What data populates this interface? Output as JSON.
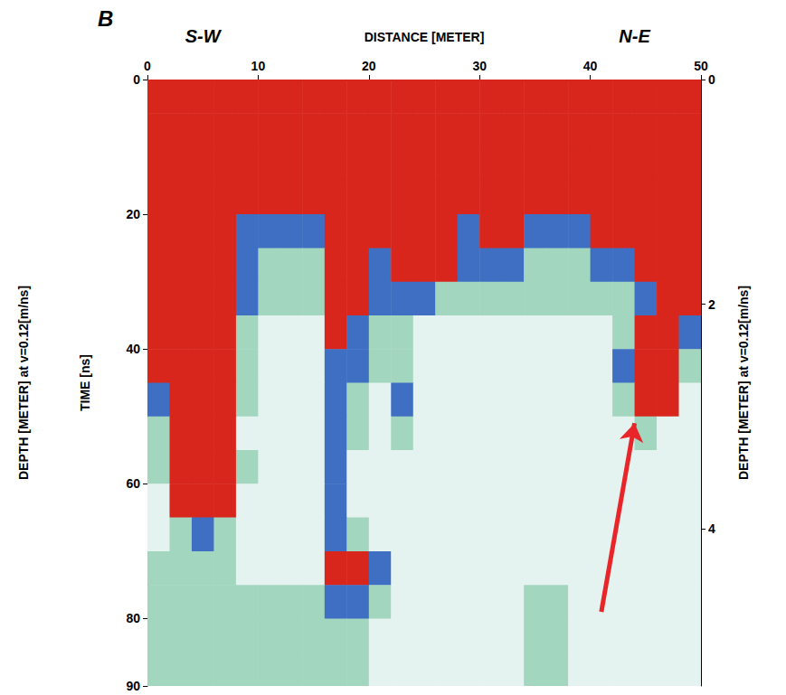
{
  "chart_data": {
    "type": "heatmap",
    "panel": "B",
    "direction_labels": [
      "S-W",
      "N-E"
    ],
    "x_label": "DISTANCE [METER]",
    "y_label": "TIME [ns]",
    "y2_label": "DEPTH [METER] at v=0.12[m/ns]",
    "xlim": [
      0,
      50
    ],
    "xticks": [
      0,
      10,
      20,
      30,
      40,
      50
    ],
    "ylim": [
      0,
      90
    ],
    "yticks": [
      0,
      20,
      40,
      60,
      80
    ],
    "y2lim": [
      0,
      5.4
    ],
    "y2ticks": [
      0,
      2,
      4
    ],
    "grid": false,
    "colors": [
      "#e4f3f0",
      "#a3d6bf",
      "#3f6fc2",
      "#d8261c"
    ],
    "cell_x": [
      1,
      3,
      5,
      7,
      9,
      11,
      13,
      15,
      17,
      19,
      21,
      23,
      25,
      27,
      29,
      31,
      33,
      35,
      37,
      39,
      41,
      43,
      45,
      47,
      49
    ],
    "cell_y": [
      2.5,
      7.5,
      12.5,
      17.5,
      22.5,
      27.5,
      32.5,
      37.5,
      42.5,
      47.5,
      52.5,
      57.5,
      62.5,
      67.5,
      72.5,
      77.5,
      82.5,
      87.5
    ],
    "cells": [
      [
        3,
        3,
        3,
        3,
        3,
        3,
        3,
        3,
        3,
        3,
        3,
        3,
        3,
        3,
        3,
        3,
        3,
        3,
        3,
        3,
        3,
        3,
        3,
        3,
        3
      ],
      [
        3,
        3,
        3,
        3,
        3,
        3,
        3,
        3,
        3,
        3,
        3,
        3,
        3,
        3,
        3,
        3,
        3,
        3,
        3,
        3,
        3,
        3,
        3,
        3,
        3
      ],
      [
        3,
        3,
        3,
        3,
        3,
        3,
        3,
        3,
        3,
        3,
        3,
        3,
        3,
        3,
        3,
        3,
        3,
        3,
        3,
        3,
        3,
        3,
        3,
        3,
        3
      ],
      [
        3,
        3,
        3,
        3,
        3,
        3,
        3,
        3,
        3,
        3,
        3,
        3,
        3,
        3,
        3,
        3,
        3,
        3,
        3,
        3,
        3,
        3,
        3,
        3,
        3
      ],
      [
        3,
        3,
        3,
        3,
        2,
        2,
        2,
        2,
        3,
        3,
        3,
        3,
        3,
        3,
        2,
        3,
        3,
        2,
        2,
        2,
        3,
        3,
        3,
        3,
        3
      ],
      [
        3,
        3,
        3,
        3,
        2,
        1,
        1,
        1,
        3,
        3,
        2,
        3,
        3,
        3,
        2,
        2,
        2,
        1,
        1,
        1,
        2,
        2,
        3,
        3,
        3
      ],
      [
        3,
        3,
        3,
        3,
        2,
        1,
        1,
        1,
        3,
        3,
        2,
        2,
        2,
        1,
        1,
        1,
        1,
        1,
        1,
        1,
        1,
        1,
        2,
        3,
        3
      ],
      [
        3,
        3,
        3,
        3,
        1,
        0,
        0,
        0,
        3,
        2,
        1,
        1,
        0,
        0,
        0,
        0,
        0,
        0,
        0,
        0,
        0,
        1,
        3,
        3,
        2
      ],
      [
        3,
        3,
        3,
        3,
        1,
        0,
        0,
        0,
        2,
        2,
        1,
        1,
        0,
        0,
        0,
        0,
        0,
        0,
        0,
        0,
        0,
        2,
        3,
        3,
        1
      ],
      [
        2,
        3,
        3,
        3,
        1,
        0,
        0,
        0,
        2,
        1,
        0,
        2,
        0,
        0,
        0,
        0,
        0,
        0,
        0,
        0,
        0,
        1,
        3,
        3,
        0
      ],
      [
        1,
        3,
        3,
        3,
        0,
        0,
        0,
        0,
        2,
        1,
        0,
        1,
        0,
        0,
        0,
        0,
        0,
        0,
        0,
        0,
        0,
        0,
        1,
        0,
        0
      ],
      [
        1,
        3,
        3,
        3,
        1,
        0,
        0,
        0,
        2,
        0,
        0,
        0,
        0,
        0,
        0,
        0,
        0,
        0,
        0,
        0,
        0,
        0,
        0,
        0,
        0
      ],
      [
        0,
        3,
        3,
        3,
        0,
        0,
        0,
        0,
        2,
        0,
        0,
        0,
        0,
        0,
        0,
        0,
        0,
        0,
        0,
        0,
        0,
        0,
        0,
        0,
        0
      ],
      [
        0,
        1,
        2,
        1,
        0,
        0,
        0,
        0,
        2,
        1,
        0,
        0,
        0,
        0,
        0,
        0,
        0,
        0,
        0,
        0,
        0,
        0,
        0,
        0,
        0
      ],
      [
        1,
        1,
        1,
        1,
        0,
        0,
        0,
        0,
        3,
        3,
        2,
        0,
        0,
        0,
        0,
        0,
        0,
        0,
        0,
        0,
        0,
        0,
        0,
        0,
        0
      ],
      [
        1,
        1,
        1,
        1,
        1,
        1,
        1,
        1,
        2,
        2,
        1,
        0,
        0,
        0,
        0,
        0,
        0,
        1,
        1,
        0,
        0,
        0,
        0,
        0,
        0
      ],
      [
        1,
        1,
        1,
        1,
        1,
        1,
        1,
        1,
        1,
        1,
        0,
        0,
        0,
        0,
        0,
        0,
        0,
        1,
        1,
        0,
        0,
        0,
        0,
        0,
        0
      ],
      [
        1,
        1,
        1,
        1,
        1,
        1,
        1,
        1,
        1,
        1,
        0,
        0,
        0,
        0,
        0,
        0,
        0,
        1,
        1,
        0,
        0,
        0,
        0,
        0,
        0
      ]
    ],
    "arrow": {
      "from": [
        41,
        79
      ],
      "to": [
        44,
        51
      ],
      "color": "#e8262a"
    }
  }
}
